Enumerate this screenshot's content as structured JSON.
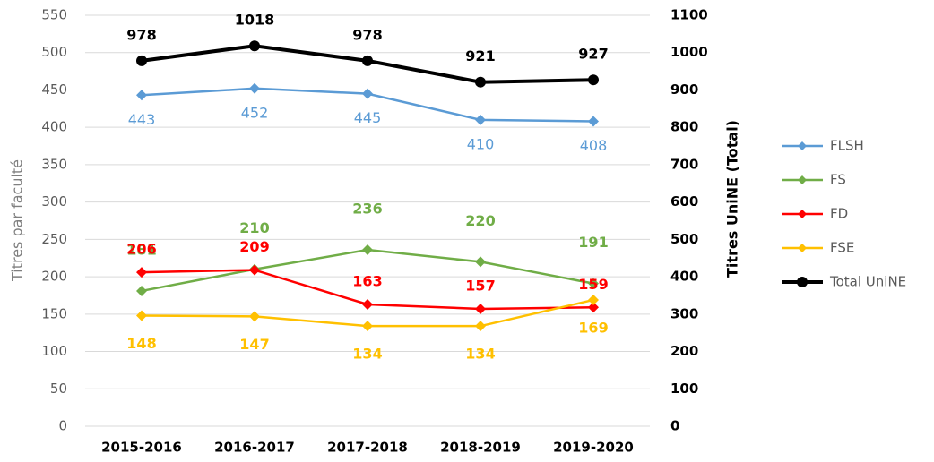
{
  "chart_data": {
    "type": "line",
    "y_label": "Titres par faculté",
    "y2_label": "Titres UniNE (Total)",
    "categories": [
      "2015-2016",
      "2016-2017",
      "2017-2018",
      "2018-2019",
      "2019-2020"
    ],
    "series": [
      {
        "name": "FLSH",
        "color": "#5b9bd5",
        "marker": "diamond",
        "values": [
          443,
          452,
          445,
          410,
          408
        ]
      },
      {
        "name": "FS",
        "color": "#70ad47",
        "marker": "diamond",
        "values": [
          181,
          210,
          236,
          220,
          191
        ]
      },
      {
        "name": "FD",
        "color": "#ff0000",
        "marker": "diamond",
        "values": [
          206,
          209,
          163,
          157,
          159
        ]
      },
      {
        "name": "FSE",
        "color": "#ffc000",
        "marker": "diamond",
        "values": [
          148,
          147,
          134,
          134,
          169
        ]
      },
      {
        "name": "Total UniNE",
        "color": "#000000",
        "marker": "circle",
        "axis": "y2",
        "values": [
          978,
          1018,
          978,
          921,
          927
        ]
      }
    ],
    "ylim": [
      0,
      550
    ],
    "yticks": [
      0,
      50,
      100,
      150,
      200,
      250,
      300,
      350,
      400,
      450,
      500,
      550
    ],
    "y2lim": [
      0,
      1100
    ],
    "y2ticks": [
      0,
      100,
      200,
      300,
      400,
      500,
      600,
      700,
      800,
      900,
      1000,
      1100
    ],
    "grid": true,
    "legend": "right"
  }
}
